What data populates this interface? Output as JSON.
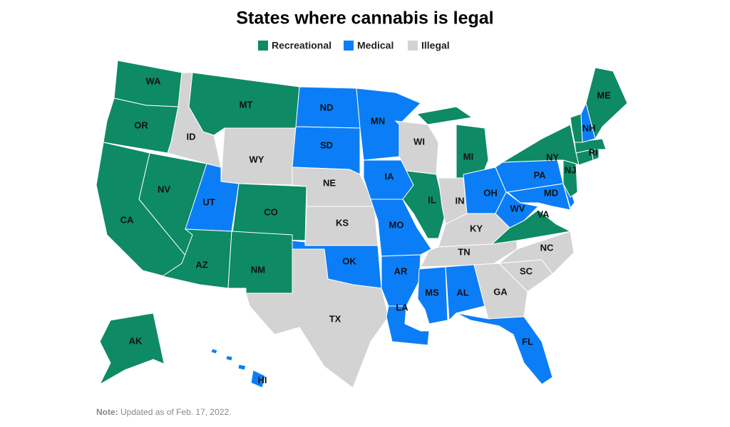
{
  "map": {
    "title": "States where cannabis is legal",
    "legend": [
      {
        "label": "Recreational",
        "color": "#0e8a64"
      },
      {
        "label": "Medical",
        "color": "#0b7ef7"
      },
      {
        "label": "Illegal",
        "color": "#d3d3d3"
      }
    ],
    "states": [
      {
        "abbr": "WA",
        "status": "Recreational"
      },
      {
        "abbr": "OR",
        "status": "Recreational"
      },
      {
        "abbr": "CA",
        "status": "Recreational"
      },
      {
        "abbr": "NV",
        "status": "Recreational"
      },
      {
        "abbr": "ID",
        "status": "Illegal"
      },
      {
        "abbr": "MT",
        "status": "Recreational"
      },
      {
        "abbr": "WY",
        "status": "Illegal"
      },
      {
        "abbr": "UT",
        "status": "Medical"
      },
      {
        "abbr": "CO",
        "status": "Recreational"
      },
      {
        "abbr": "AZ",
        "status": "Recreational"
      },
      {
        "abbr": "NM",
        "status": "Recreational"
      },
      {
        "abbr": "ND",
        "status": "Medical"
      },
      {
        "abbr": "SD",
        "status": "Medical"
      },
      {
        "abbr": "NE",
        "status": "Illegal"
      },
      {
        "abbr": "KS",
        "status": "Illegal"
      },
      {
        "abbr": "OK",
        "status": "Medical"
      },
      {
        "abbr": "TX",
        "status": "Illegal"
      },
      {
        "abbr": "MN",
        "status": "Medical"
      },
      {
        "abbr": "IA",
        "status": "Medical"
      },
      {
        "abbr": "MO",
        "status": "Medical"
      },
      {
        "abbr": "AR",
        "status": "Medical"
      },
      {
        "abbr": "LA",
        "status": "Medical"
      },
      {
        "abbr": "WI",
        "status": "Illegal"
      },
      {
        "abbr": "IL",
        "status": "Recreational"
      },
      {
        "abbr": "MI",
        "status": "Recreational"
      },
      {
        "abbr": "IN",
        "status": "Illegal"
      },
      {
        "abbr": "OH",
        "status": "Medical"
      },
      {
        "abbr": "KY",
        "status": "Illegal"
      },
      {
        "abbr": "TN",
        "status": "Illegal"
      },
      {
        "abbr": "MS",
        "status": "Medical"
      },
      {
        "abbr": "AL",
        "status": "Medical"
      },
      {
        "abbr": "GA",
        "status": "Illegal"
      },
      {
        "abbr": "FL",
        "status": "Medical"
      },
      {
        "abbr": "SC",
        "status": "Illegal"
      },
      {
        "abbr": "NC",
        "status": "Illegal"
      },
      {
        "abbr": "VA",
        "status": "Recreational"
      },
      {
        "abbr": "WV",
        "status": "Medical"
      },
      {
        "abbr": "PA",
        "status": "Medical"
      },
      {
        "abbr": "MD",
        "status": "Medical"
      },
      {
        "status": "Medical"
      },
      {
        "abbr": "NJ",
        "status": "Recreational"
      },
      {
        "abbr": "NY",
        "status": "Recreational"
      },
      {
        "status": "Recreational"
      },
      {
        "abbr": "RI",
        "status": "Recreational"
      },
      {
        "status": "Recreational"
      },
      {
        "status": "Recreational"
      },
      {
        "abbr": "NH",
        "status": "Medical"
      },
      {
        "abbr": "ME",
        "status": "Recreational"
      },
      {
        "abbr": "AK",
        "status": "Recreational"
      },
      {
        "abbr": "HI",
        "status": "Medical"
      }
    ],
    "note_label": "Note:",
    "note": "Updated as of Feb. 17, 2022."
  }
}
